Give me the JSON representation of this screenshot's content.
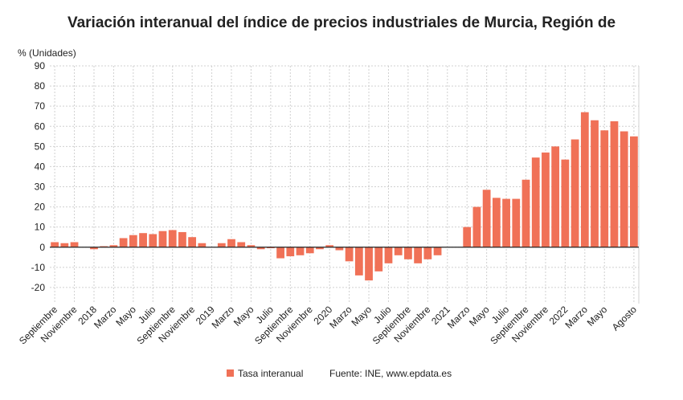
{
  "chart_data": {
    "type": "bar",
    "title": "Variación interanual del índice de precios industriales de Murcia, Región de",
    "y_axis_label": "% (Unidades)",
    "source": "Fuente: INE, www.epdata.es",
    "categories": [
      "Septiembre",
      null,
      "Noviembre",
      null,
      "2018",
      null,
      "Marzo",
      null,
      "Mayo",
      null,
      "Julio",
      null,
      "Septiembre",
      null,
      "Noviembre",
      null,
      "2019",
      null,
      "Marzo",
      null,
      "Mayo",
      null,
      "Julio",
      null,
      "Septiembre",
      null,
      "Noviembre",
      null,
      "2020",
      null,
      "Marzo",
      null,
      "Mayo",
      null,
      "Julio",
      null,
      "Septiembre",
      null,
      "Noviembre",
      null,
      "2021",
      null,
      "Marzo",
      null,
      "Mayo",
      null,
      "Julio",
      null,
      "Septiembre",
      null,
      "Noviembre",
      null,
      "2022",
      null,
      "Marzo",
      null,
      "Mayo",
      null,
      null,
      "Agosto"
    ],
    "series": [
      {
        "name": "Tasa interanual",
        "color": "#f07157",
        "values": [
          2.5,
          2,
          2.5,
          0,
          -1,
          0.5,
          1,
          4.5,
          6,
          7,
          6.5,
          8,
          8.5,
          7.5,
          5,
          2,
          0,
          2,
          4,
          2.5,
          1,
          -1,
          -0.5,
          -5.5,
          -4.5,
          -4,
          -3,
          -1,
          1,
          -1.5,
          -7,
          -14,
          -16.5,
          -12,
          -8,
          -4,
          -6,
          -8,
          -6,
          -4,
          0,
          0,
          10,
          20,
          28.5,
          24.5,
          24,
          24,
          33.5,
          44.5,
          47,
          50,
          43.5,
          53.5,
          67,
          63,
          58,
          62.5,
          57.5,
          55
        ]
      }
    ],
    "ylim": [
      -28,
      90
    ],
    "yticks": [
      -20,
      -10,
      0,
      10,
      20,
      30,
      40,
      50,
      60,
      70,
      80,
      90
    ],
    "grid": true
  }
}
